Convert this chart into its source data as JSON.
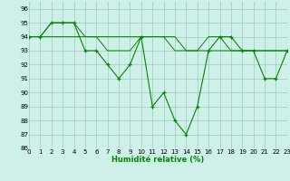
{
  "xlabel": "Humidité relative (%)",
  "background_color": "#cff0e8",
  "grid_color": "#99ccbb",
  "line_color": "#008800",
  "x": [
    0,
    1,
    2,
    3,
    4,
    5,
    6,
    7,
    8,
    9,
    10,
    11,
    12,
    13,
    14,
    15,
    16,
    17,
    18,
    19,
    20,
    21,
    22,
    23
  ],
  "series1": [
    94,
    94,
    95,
    95,
    95,
    93,
    93,
    92,
    91,
    92,
    94,
    89,
    90,
    88,
    87,
    89,
    93,
    94,
    94,
    93,
    93,
    91,
    91,
    93
  ],
  "series2": [
    94,
    94,
    94,
    94,
    94,
    94,
    94,
    94,
    94,
    94,
    94,
    94,
    94,
    94,
    93,
    93,
    93,
    93,
    93,
    93,
    93,
    93,
    93,
    93
  ],
  "series3": [
    94,
    94,
    95,
    95,
    95,
    94,
    94,
    93,
    93,
    93,
    94,
    94,
    94,
    93,
    93,
    93,
    94,
    94,
    93,
    93,
    93,
    93,
    93,
    93
  ],
  "xlim": [
    0,
    23
  ],
  "ylim": [
    86,
    96.5
  ],
  "yticks": [
    86,
    87,
    88,
    89,
    90,
    91,
    92,
    93,
    94,
    95,
    96
  ],
  "xticks": [
    0,
    1,
    2,
    3,
    4,
    5,
    6,
    7,
    8,
    9,
    10,
    11,
    12,
    13,
    14,
    15,
    16,
    17,
    18,
    19,
    20,
    21,
    22,
    23
  ],
  "xlabel_fontsize": 6.0,
  "tick_fontsize": 5.0
}
